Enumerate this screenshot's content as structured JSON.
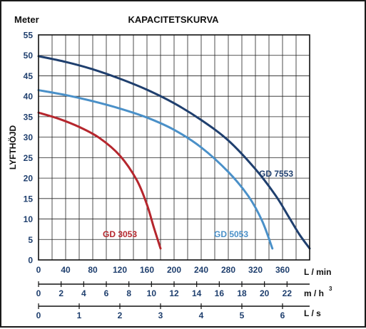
{
  "chart_data": {
    "type": "line",
    "title": "KAPACITETSKURVA",
    "ylabel": "LYFTHÖJD",
    "y_unit_label": "Meter",
    "ylim": [
      0,
      55
    ],
    "y_ticks": [
      0,
      5,
      10,
      15,
      20,
      25,
      30,
      35,
      40,
      45,
      50,
      55
    ],
    "grid": true,
    "x_axes": [
      {
        "unit": "L / min",
        "xlim": [
          0,
          400
        ],
        "ticks": [
          0,
          40,
          80,
          120,
          160,
          200,
          240,
          280,
          320,
          360
        ],
        "tick_labels": [
          "0",
          "40",
          "80",
          "120",
          "160",
          "200",
          "240",
          "280",
          "320",
          "360"
        ]
      },
      {
        "unit": "m / h",
        "unit_superscript": "3",
        "xlim": [
          0,
          24
        ],
        "ticks": [
          0,
          2,
          4,
          6,
          8,
          10,
          12,
          14,
          16,
          18,
          20,
          22
        ],
        "tick_labels": [
          "0",
          "2",
          "4",
          "6",
          "8",
          "10",
          "12",
          "14",
          "16",
          "18",
          "20",
          "22"
        ]
      },
      {
        "unit": "L / s",
        "xlim": [
          0,
          6.667
        ],
        "ticks": [
          0,
          1,
          2,
          3,
          4,
          5,
          6
        ],
        "tick_labels": [
          "0",
          "1",
          "2",
          "3",
          "4",
          "5",
          "6"
        ]
      }
    ],
    "series": [
      {
        "name": "GD 3053",
        "color": "#b5262d",
        "x": [
          0,
          30,
          60,
          90,
          120,
          145,
          160,
          170,
          180
        ],
        "y": [
          36,
          34.5,
          32.5,
          29.8,
          25.5,
          19.5,
          13.5,
          8,
          2.8
        ]
      },
      {
        "name": "GD 5053",
        "color": "#4a90c8",
        "x": [
          0,
          40,
          80,
          120,
          160,
          200,
          240,
          280,
          310,
          330,
          345
        ],
        "y": [
          41.5,
          40.3,
          38.8,
          37,
          34.8,
          31.8,
          27.5,
          21.5,
          15.5,
          9.5,
          2.8
        ]
      },
      {
        "name": "GD 7553",
        "color": "#1f3f6e",
        "x": [
          0,
          40,
          80,
          120,
          160,
          200,
          240,
          280,
          320,
          350,
          370,
          385,
          400
        ],
        "y": [
          49.8,
          48.4,
          46.6,
          44.3,
          41.6,
          38.3,
          34.2,
          29.2,
          22.2,
          15.7,
          10.3,
          6.2,
          2.8
        ]
      }
    ],
    "annotations": [
      {
        "text": "GD 3053",
        "series": "GD 3053"
      },
      {
        "text": "GD 5053",
        "series": "GD 5053"
      },
      {
        "text": "GD 7553",
        "series": "GD 7553"
      }
    ]
  }
}
